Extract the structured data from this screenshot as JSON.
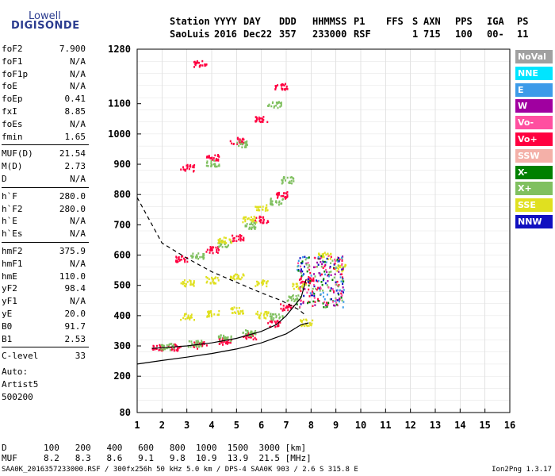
{
  "logo": {
    "line1": "Lowell",
    "line2": "DIGISONDE"
  },
  "header": {
    "row1": [
      "Station",
      "YYYY",
      "DAY",
      "DDD",
      "HHMMSS",
      "P1",
      "FFS",
      "S",
      "AXN",
      "PPS",
      "IGA",
      "PS"
    ],
    "row2": [
      "SaoLuis",
      "2016",
      "Dec22",
      "357",
      "233000",
      "RSF",
      "1",
      "715",
      "100",
      "00-",
      "11"
    ]
  },
  "params": [
    {
      "label": "foF2",
      "value": "7.900"
    },
    {
      "label": "foF1",
      "value": "N/A"
    },
    {
      "label": "foF1p",
      "value": "N/A"
    },
    {
      "label": "foE",
      "value": "N/A"
    },
    {
      "label": "foEp",
      "value": "0.41"
    },
    {
      "label": "fxI",
      "value": "8.85"
    },
    {
      "label": "foEs",
      "value": "N/A"
    },
    {
      "label": "fmin",
      "value": "1.65"
    },
    {
      "label": "MUF(D)",
      "value": "21.54"
    },
    {
      "label": "M(D)",
      "value": "2.73"
    },
    {
      "label": "D",
      "value": "N/A"
    },
    {
      "label": "h`F",
      "value": "280.0"
    },
    {
      "label": "h`F2",
      "value": "280.0"
    },
    {
      "label": "h`E",
      "value": "N/A"
    },
    {
      "label": "h`Es",
      "value": "N/A"
    },
    {
      "label": "hmF2",
      "value": "375.9"
    },
    {
      "label": "hmF1",
      "value": "N/A"
    },
    {
      "label": "hmE",
      "value": "110.0"
    },
    {
      "label": "yF2",
      "value": "98.4"
    },
    {
      "label": "yF1",
      "value": "N/A"
    },
    {
      "label": "yE",
      "value": "20.0"
    },
    {
      "label": "B0",
      "value": "91.7"
    },
    {
      "label": "B1",
      "value": "2.53"
    },
    {
      "label": "C-level",
      "value": "33"
    }
  ],
  "autoscale": {
    "line1": "Auto:",
    "line2": "Artist5",
    "line3": "500200"
  },
  "legend": [
    {
      "label": "NoVal",
      "color": "#a0a0a0"
    },
    {
      "label": "NNE",
      "color": "#00e5ff"
    },
    {
      "label": "E",
      "color": "#3d9be9"
    },
    {
      "label": "W",
      "color": "#a000a0"
    },
    {
      "label": "Vo-",
      "color": "#ff4fa0"
    },
    {
      "label": "Vo+",
      "color": "#ff0040"
    },
    {
      "label": "SSW",
      "color": "#f4b0a8"
    },
    {
      "label": "X-",
      "color": "#008000"
    },
    {
      "label": "X+",
      "color": "#80c060"
    },
    {
      "label": "SSE",
      "color": "#e0e020"
    },
    {
      "label": "NNW",
      "color": "#1010c0"
    }
  ],
  "dm_table": {
    "d_label": "D",
    "d_values": [
      "100",
      "200",
      "400",
      "600",
      "800",
      "1000",
      "1500",
      "3000"
    ],
    "d_unit": "[km]",
    "m_label": "MUF",
    "m_values": [
      "8.2",
      "8.3",
      "8.6",
      "9.1",
      "9.8",
      "10.9",
      "13.9",
      "21.5"
    ],
    "m_unit": "[MHz]"
  },
  "footer": {
    "left": "SAA0K_2016357233000.RSF / 300fx256h 50 kHz 5.0 km / DPS-4 SAA0K 903 / 2.6 S 315.8 E",
    "right": "Ion2Png 1.3.17"
  },
  "chart_data": {
    "type": "scatter",
    "xlim": [
      1,
      16
    ],
    "ylim": [
      80,
      1280
    ],
    "x_ticks": [
      1,
      2,
      3,
      4,
      5,
      6,
      7,
      8,
      9,
      10,
      11,
      12,
      13,
      14,
      15,
      16
    ],
    "y_ticks": [
      80,
      200,
      300,
      400,
      500,
      600,
      700,
      800,
      900,
      1000,
      1100,
      1280
    ],
    "grid": true,
    "series": [
      {
        "name": "Vo+",
        "color": "#ff0040",
        "points": [
          [
            1.8,
            295
          ],
          [
            2.5,
            298
          ],
          [
            3.5,
            305
          ],
          [
            4.5,
            318
          ],
          [
            5.5,
            335
          ],
          [
            6.5,
            375
          ],
          [
            7.0,
            430
          ],
          [
            7.8,
            520
          ],
          [
            2.8,
            590
          ],
          [
            4,
            620
          ],
          [
            5,
            660
          ],
          [
            6,
            720
          ],
          [
            6.8,
            800
          ],
          [
            3,
            890
          ],
          [
            4,
            925
          ],
          [
            5,
            980
          ],
          [
            6,
            1050
          ],
          [
            6.8,
            1160
          ],
          [
            3.5,
            1235
          ]
        ]
      },
      {
        "name": "X+",
        "color": "#80c060",
        "points": [
          [
            2.2,
            300
          ],
          [
            3.3,
            310
          ],
          [
            4.5,
            328
          ],
          [
            5.5,
            345
          ],
          [
            6.6,
            400
          ],
          [
            7.2,
            460
          ],
          [
            3.4,
            600
          ],
          [
            4.5,
            640
          ],
          [
            5.5,
            700
          ],
          [
            6.6,
            780
          ],
          [
            7.0,
            850
          ],
          [
            4,
            905
          ],
          [
            5.2,
            970
          ],
          [
            6.5,
            1100
          ]
        ]
      },
      {
        "name": "SSE",
        "color": "#e0e020",
        "points": [
          [
            3,
            400
          ],
          [
            4,
            410
          ],
          [
            5,
            420
          ],
          [
            6,
            405
          ],
          [
            7.8,
            380
          ],
          [
            3,
            510
          ],
          [
            4,
            520
          ],
          [
            5,
            530
          ],
          [
            6,
            510
          ],
          [
            7.5,
            500
          ],
          [
            4.5,
            650
          ],
          [
            5.5,
            720
          ],
          [
            6,
            760
          ],
          [
            8.5,
            600
          ],
          [
            9.2,
            560
          ]
        ]
      }
    ],
    "profile_curve": {
      "name": "profile",
      "points": [
        [
          1,
          240
        ],
        [
          2,
          252
        ],
        [
          3,
          263
        ],
        [
          4,
          275
        ],
        [
          5,
          290
        ],
        [
          6,
          310
        ],
        [
          7,
          340
        ],
        [
          7.6,
          370
        ],
        [
          7.9,
          376
        ]
      ]
    },
    "virtual_trace": {
      "name": "O-trace fit",
      "points": [
        [
          1.6,
          292
        ],
        [
          2,
          294
        ],
        [
          3,
          300
        ],
        [
          4,
          310
        ],
        [
          5,
          325
        ],
        [
          6,
          348
        ],
        [
          6.6,
          370
        ],
        [
          7,
          400
        ],
        [
          7.3,
          430
        ],
        [
          7.6,
          460
        ],
        [
          7.8,
          520
        ]
      ]
    },
    "dashed_curve": {
      "name": "dashed",
      "points": [
        [
          1,
          790
        ],
        [
          2,
          640
        ],
        [
          3,
          590
        ],
        [
          4,
          545
        ],
        [
          5,
          510
        ],
        [
          6,
          475
        ],
        [
          6.8,
          450
        ],
        [
          7.5,
          420
        ],
        [
          7.8,
          400
        ]
      ]
    }
  }
}
